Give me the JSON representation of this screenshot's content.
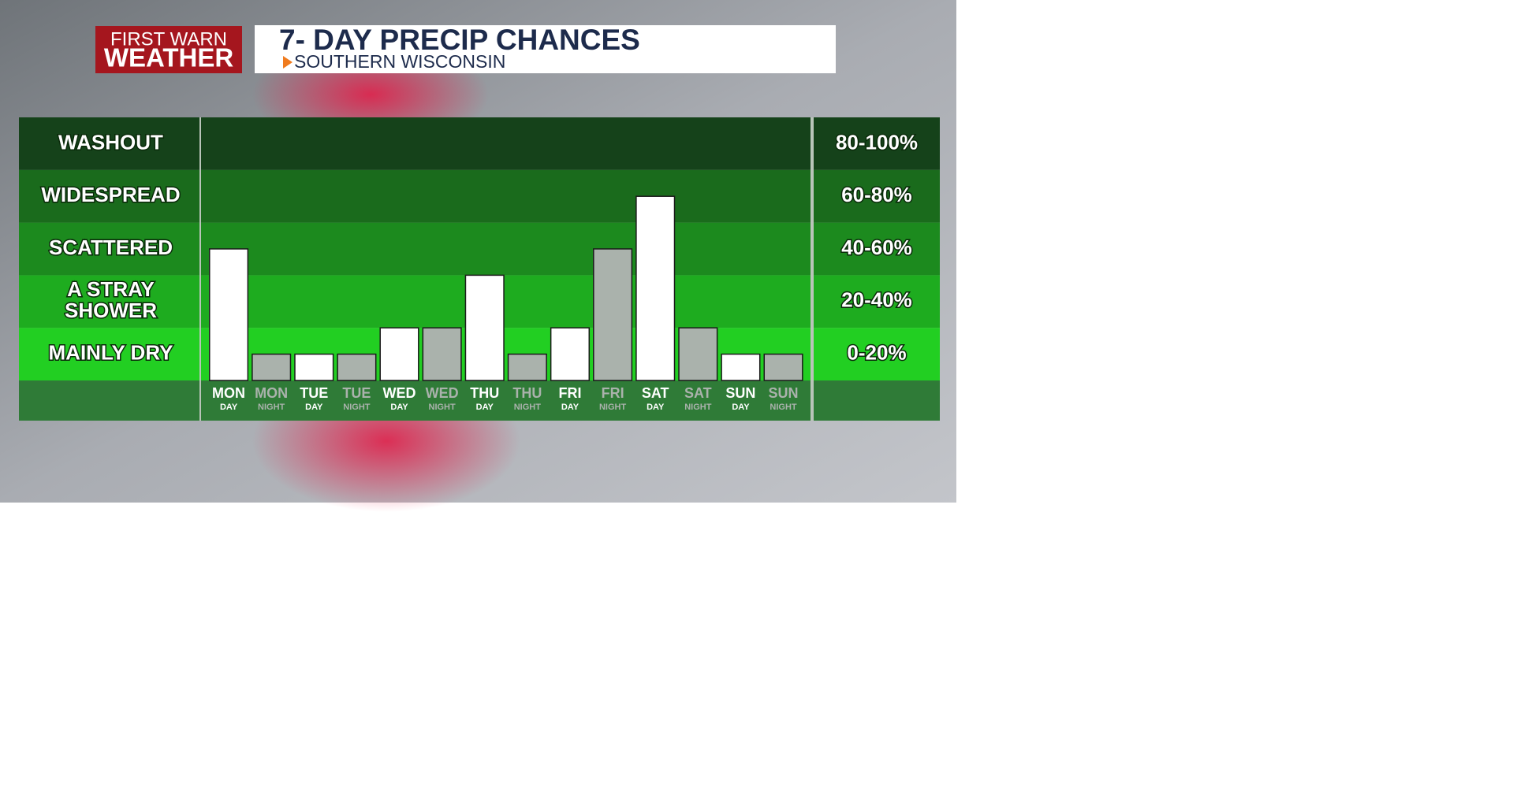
{
  "chart_data": {
    "type": "bar",
    "brand": [
      "FIRST WARN",
      "WEATHER"
    ],
    "title": "7- DAY PRECIP CHANCES",
    "subtitle": "SOUTHERN WISCONSIN",
    "bands": [
      {
        "label": [
          "WASHOUT"
        ],
        "range": "80-100%",
        "color": "#15421a"
      },
      {
        "label": [
          "WIDESPREAD"
        ],
        "range": "60-80%",
        "color": "#1a6b1c"
      },
      {
        "label": [
          "SCATTERED"
        ],
        "range": "40-60%",
        "color": "#1c8a1e"
      },
      {
        "label": [
          "A STRAY",
          "SHOWER"
        ],
        "range": "20-40%",
        "color": "#1eac1f"
      },
      {
        "label": [
          "MAINLY DRY"
        ],
        "range": "0-20%",
        "color": "#22cf22"
      }
    ],
    "categories": [
      "MON",
      "MON",
      "TUE",
      "TUE",
      "WED",
      "WED",
      "THU",
      "THU",
      "FRI",
      "FRI",
      "SAT",
      "SAT",
      "SUN",
      "SUN"
    ],
    "periods": [
      "DAY",
      "NIGHT",
      "DAY",
      "NIGHT",
      "DAY",
      "NIGHT",
      "DAY",
      "NIGHT",
      "DAY",
      "NIGHT",
      "DAY",
      "NIGHT",
      "DAY",
      "NIGHT"
    ],
    "values": [
      50,
      10,
      10,
      10,
      20,
      20,
      40,
      10,
      20,
      50,
      70,
      20,
      10,
      10
    ],
    "colors": [
      "#ffffff",
      "#aab2ac",
      "#ffffff",
      "#aab2ac",
      "#ffffff",
      "#aab2ac",
      "#ffffff",
      "#aab2ac",
      "#ffffff",
      "#aab2ac",
      "#ffffff",
      "#aab2ac",
      "#ffffff",
      "#aab2ac"
    ],
    "ylim": [
      0,
      100
    ]
  }
}
